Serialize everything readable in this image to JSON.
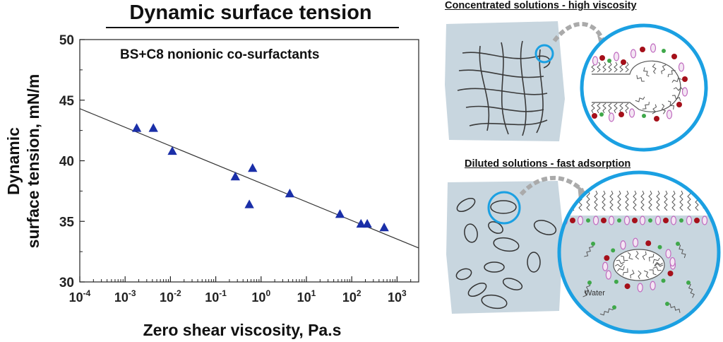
{
  "page": {
    "title": "Dynamic surface tension"
  },
  "chart_data": {
    "type": "scatter",
    "annotation": "BS+C8 nonionic co-surfactants",
    "xlabel": "Zero shear viscosity, Pa.s",
    "ylabel_line1": "Dynamic",
    "ylabel_line2": "surface tension, mN/m",
    "xscale": "log",
    "xlim": [
      0.0001,
      3000
    ],
    "ylim": [
      30,
      50
    ],
    "x_ticks": [
      {
        "base": "10",
        "exp": "-4",
        "value": 0.0001
      },
      {
        "base": "10",
        "exp": "-3",
        "value": 0.001
      },
      {
        "base": "10",
        "exp": "-2",
        "value": 0.01
      },
      {
        "base": "10",
        "exp": "-1",
        "value": 0.1
      },
      {
        "base": "10",
        "exp": "0",
        "value": 1
      },
      {
        "base": "10",
        "exp": "1",
        "value": 10
      },
      {
        "base": "10",
        "exp": "2",
        "value": 100
      },
      {
        "base": "10",
        "exp": "3",
        "value": 1000
      }
    ],
    "y_ticks": [
      "30",
      "35",
      "40",
      "45",
      "50"
    ],
    "grid": false,
    "marker_color": "#1a2fa8",
    "series": [
      {
        "marker": "triangle",
        "points": [
          {
            "x": 0.0018,
            "y": 42.7
          },
          {
            "x": 0.0042,
            "y": 42.7
          },
          {
            "x": 0.011,
            "y": 40.8
          },
          {
            "x": 0.27,
            "y": 38.7
          },
          {
            "x": 0.55,
            "y": 36.4
          },
          {
            "x": 0.65,
            "y": 39.4
          },
          {
            "x": 4.3,
            "y": 37.3
          },
          {
            "x": 55,
            "y": 35.6
          },
          {
            "x": 160,
            "y": 34.8
          },
          {
            "x": 220,
            "y": 34.8
          },
          {
            "x": 520,
            "y": 34.5
          }
        ]
      }
    ],
    "fit_line": {
      "x": [
        0.0001,
        3000
      ],
      "y": [
        44.3,
        32.8
      ]
    }
  },
  "illustration": {
    "top_title": "Concentrated solutions - high viscosity",
    "bottom_title": "Diluted solutions - fast adsorption",
    "water_label": "Water",
    "colors": {
      "panel_fill": "#c8d6df",
      "highlight_ring": "#1ba0e2",
      "head_red": "#a5101a",
      "head_green": "#3fa84a",
      "head_pink": "#c06bbf"
    }
  }
}
